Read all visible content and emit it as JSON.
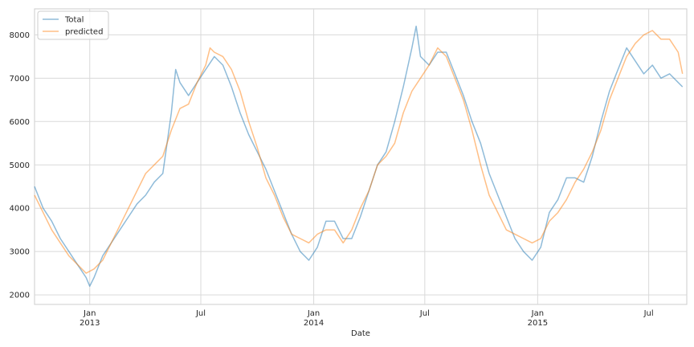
{
  "chart_data": {
    "type": "line",
    "xlabel": "Date",
    "ylabel": "",
    "title": "",
    "xlim": [
      "2012-10-03",
      "2015-09-01"
    ],
    "ylim": [
      1780,
      8600
    ],
    "grid": true,
    "legend_position": "top-left",
    "y_ticks": [
      2000,
      3000,
      4000,
      5000,
      6000,
      7000,
      8000
    ],
    "y_tick_labels": [
      "2000",
      "3000",
      "4000",
      "5000",
      "6000",
      "7000",
      "8000"
    ],
    "x_ticks": [
      {
        "date": "2013-01-01",
        "lines": [
          "Jan",
          "2013"
        ]
      },
      {
        "date": "2013-07-01",
        "lines": [
          "Jul",
          ""
        ]
      },
      {
        "date": "2014-01-01",
        "lines": [
          "Jan",
          "2014"
        ]
      },
      {
        "date": "2014-07-01",
        "lines": [
          "Jul",
          ""
        ]
      },
      {
        "date": "2015-01-01",
        "lines": [
          "Jan",
          "2015"
        ]
      },
      {
        "date": "2015-07-01",
        "lines": [
          "Jul",
          ""
        ]
      }
    ],
    "series": [
      {
        "name": "Total",
        "color": "#1f77b4",
        "points": [
          [
            "2012-10-03",
            4500
          ],
          [
            "2012-10-17",
            4000
          ],
          [
            "2012-10-31",
            3700
          ],
          [
            "2012-11-14",
            3300
          ],
          [
            "2012-11-28",
            3000
          ],
          [
            "2012-12-12",
            2700
          ],
          [
            "2012-12-26",
            2400
          ],
          [
            "2013-01-01",
            2200
          ],
          [
            "2013-01-08",
            2400
          ],
          [
            "2013-01-22",
            2900
          ],
          [
            "2013-02-05",
            3200
          ],
          [
            "2013-02-19",
            3500
          ],
          [
            "2013-03-05",
            3800
          ],
          [
            "2013-03-19",
            4100
          ],
          [
            "2013-04-02",
            4300
          ],
          [
            "2013-04-16",
            4600
          ],
          [
            "2013-04-30",
            4800
          ],
          [
            "2013-05-14",
            6200
          ],
          [
            "2013-05-21",
            7200
          ],
          [
            "2013-05-28",
            6900
          ],
          [
            "2013-06-11",
            6600
          ],
          [
            "2013-06-25",
            6900
          ],
          [
            "2013-07-09",
            7200
          ],
          [
            "2013-07-23",
            7500
          ],
          [
            "2013-08-06",
            7300
          ],
          [
            "2013-08-20",
            6800
          ],
          [
            "2013-09-03",
            6200
          ],
          [
            "2013-09-17",
            5700
          ],
          [
            "2013-10-01",
            5300
          ],
          [
            "2013-10-15",
            4900
          ],
          [
            "2013-10-29",
            4400
          ],
          [
            "2013-11-12",
            3900
          ],
          [
            "2013-11-26",
            3400
          ],
          [
            "2013-12-10",
            3000
          ],
          [
            "2013-12-24",
            2800
          ],
          [
            "2014-01-07",
            3100
          ],
          [
            "2014-01-21",
            3700
          ],
          [
            "2014-02-04",
            3700
          ],
          [
            "2014-02-18",
            3300
          ],
          [
            "2014-03-04",
            3300
          ],
          [
            "2014-03-18",
            3800
          ],
          [
            "2014-04-01",
            4400
          ],
          [
            "2014-04-15",
            5000
          ],
          [
            "2014-04-29",
            5300
          ],
          [
            "2014-05-13",
            6000
          ],
          [
            "2014-05-27",
            6800
          ],
          [
            "2014-06-10",
            7700
          ],
          [
            "2014-06-17",
            8200
          ],
          [
            "2014-06-24",
            7500
          ],
          [
            "2014-07-08",
            7300
          ],
          [
            "2014-07-22",
            7600
          ],
          [
            "2014-08-05",
            7600
          ],
          [
            "2014-08-19",
            7100
          ],
          [
            "2014-09-02",
            6600
          ],
          [
            "2014-09-16",
            6000
          ],
          [
            "2014-09-30",
            5500
          ],
          [
            "2014-10-14",
            4800
          ],
          [
            "2014-10-28",
            4300
          ],
          [
            "2014-11-11",
            3800
          ],
          [
            "2014-11-25",
            3300
          ],
          [
            "2014-12-09",
            3000
          ],
          [
            "2014-12-23",
            2800
          ],
          [
            "2015-01-06",
            3100
          ],
          [
            "2015-01-20",
            3900
          ],
          [
            "2015-02-03",
            4200
          ],
          [
            "2015-02-17",
            4700
          ],
          [
            "2015-03-03",
            4700
          ],
          [
            "2015-03-17",
            4600
          ],
          [
            "2015-03-31",
            5200
          ],
          [
            "2015-04-14",
            6000
          ],
          [
            "2015-04-28",
            6700
          ],
          [
            "2015-05-12",
            7200
          ],
          [
            "2015-05-26",
            7700
          ],
          [
            "2015-06-09",
            7400
          ],
          [
            "2015-06-23",
            7100
          ],
          [
            "2015-07-07",
            7300
          ],
          [
            "2015-07-21",
            7000
          ],
          [
            "2015-08-04",
            7100
          ],
          [
            "2015-08-18",
            6900
          ],
          [
            "2015-08-25",
            6800
          ]
        ]
      },
      {
        "name": "predicted",
        "color": "#ff7f0e",
        "points": [
          [
            "2012-10-03",
            4300
          ],
          [
            "2012-10-17",
            3900
          ],
          [
            "2012-10-31",
            3500
          ],
          [
            "2012-11-14",
            3200
          ],
          [
            "2012-11-28",
            2900
          ],
          [
            "2012-12-12",
            2700
          ],
          [
            "2012-12-26",
            2500
          ],
          [
            "2013-01-08",
            2600
          ],
          [
            "2013-01-22",
            2800
          ],
          [
            "2013-02-05",
            3200
          ],
          [
            "2013-02-19",
            3600
          ],
          [
            "2013-03-05",
            4000
          ],
          [
            "2013-03-19",
            4400
          ],
          [
            "2013-04-02",
            4800
          ],
          [
            "2013-04-16",
            5000
          ],
          [
            "2013-04-30",
            5200
          ],
          [
            "2013-05-14",
            5800
          ],
          [
            "2013-05-28",
            6300
          ],
          [
            "2013-06-11",
            6400
          ],
          [
            "2013-06-25",
            6900
          ],
          [
            "2013-07-09",
            7300
          ],
          [
            "2013-07-16",
            7700
          ],
          [
            "2013-07-23",
            7600
          ],
          [
            "2013-08-06",
            7500
          ],
          [
            "2013-08-20",
            7200
          ],
          [
            "2013-09-03",
            6700
          ],
          [
            "2013-09-17",
            6000
          ],
          [
            "2013-10-01",
            5400
          ],
          [
            "2013-10-15",
            4700
          ],
          [
            "2013-10-29",
            4300
          ],
          [
            "2013-11-12",
            3800
          ],
          [
            "2013-11-26",
            3400
          ],
          [
            "2013-12-10",
            3300
          ],
          [
            "2013-12-24",
            3200
          ],
          [
            "2014-01-07",
            3400
          ],
          [
            "2014-01-21",
            3500
          ],
          [
            "2014-02-04",
            3500
          ],
          [
            "2014-02-18",
            3200
          ],
          [
            "2014-03-04",
            3500
          ],
          [
            "2014-03-18",
            4000
          ],
          [
            "2014-04-01",
            4400
          ],
          [
            "2014-04-15",
            5000
          ],
          [
            "2014-04-29",
            5200
          ],
          [
            "2014-05-13",
            5500
          ],
          [
            "2014-05-27",
            6200
          ],
          [
            "2014-06-10",
            6700
          ],
          [
            "2014-06-24",
            7000
          ],
          [
            "2014-07-08",
            7300
          ],
          [
            "2014-07-22",
            7700
          ],
          [
            "2014-08-05",
            7500
          ],
          [
            "2014-08-19",
            7000
          ],
          [
            "2014-09-02",
            6500
          ],
          [
            "2014-09-16",
            5800
          ],
          [
            "2014-09-30",
            5000
          ],
          [
            "2014-10-14",
            4300
          ],
          [
            "2014-10-28",
            3900
          ],
          [
            "2014-11-11",
            3500
          ],
          [
            "2014-11-25",
            3400
          ],
          [
            "2014-12-09",
            3300
          ],
          [
            "2014-12-23",
            3200
          ],
          [
            "2015-01-06",
            3300
          ],
          [
            "2015-01-20",
            3700
          ],
          [
            "2015-02-03",
            3900
          ],
          [
            "2015-02-17",
            4200
          ],
          [
            "2015-03-03",
            4600
          ],
          [
            "2015-03-17",
            4900
          ],
          [
            "2015-03-31",
            5300
          ],
          [
            "2015-04-14",
            5800
          ],
          [
            "2015-04-28",
            6500
          ],
          [
            "2015-05-12",
            7000
          ],
          [
            "2015-05-26",
            7500
          ],
          [
            "2015-06-09",
            7800
          ],
          [
            "2015-06-23",
            8000
          ],
          [
            "2015-07-07",
            8100
          ],
          [
            "2015-07-21",
            7900
          ],
          [
            "2015-08-04",
            7900
          ],
          [
            "2015-08-18",
            7600
          ],
          [
            "2015-08-25",
            7100
          ]
        ]
      }
    ]
  }
}
